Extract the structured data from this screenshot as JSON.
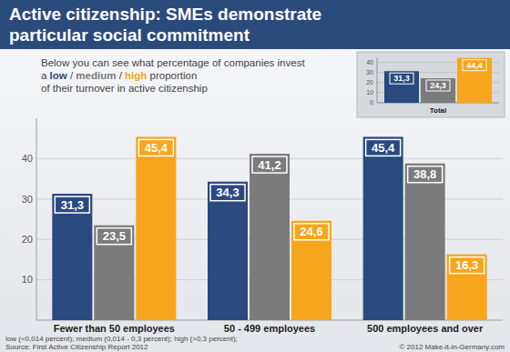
{
  "chart_data": [
    {
      "type": "bar",
      "title": [
        "Active citizenship: SMEs demonstrate",
        "particular social commitment"
      ],
      "subtitle": [
        "Below you can see what percentage of companies invest",
        "a low / medium / high proportion",
        "of their turnover in active citizenship"
      ],
      "categories": [
        "Fewer than 50 employees",
        "50 - 499 employees",
        "500 employees and over"
      ],
      "series": [
        {
          "name": "low",
          "color": "#2a4a7f",
          "values": [
            31.3,
            34.3,
            45.4
          ],
          "value_labels": [
            "31,3",
            "34,3",
            "45,4"
          ]
        },
        {
          "name": "medium",
          "color": "#7b7b7b",
          "values": [
            23.5,
            41.2,
            38.8
          ],
          "value_labels": [
            "23,5",
            "41,2",
            "38,8"
          ]
        },
        {
          "name": "high",
          "color": "#f7a51c",
          "values": [
            45.4,
            24.6,
            16.3
          ],
          "value_labels": [
            "45,4",
            "24,6",
            "16,3"
          ]
        }
      ],
      "ylim": [
        0,
        50
      ],
      "yticks": [
        10,
        20,
        30,
        40
      ],
      "grid": true,
      "data_labels": true,
      "notes": [
        "low (<0,014 percent); medium (0,014 - 0,3 percent); high (>0,3 percent);",
        "Source: First Active Citizenship Report 2012"
      ],
      "credit": "© 2012 Make-it-in-Germany.com"
    },
    {
      "type": "bar",
      "categories": [
        "Total"
      ],
      "series": [
        {
          "color": "#2a4a7f",
          "values": [
            31.3
          ],
          "value_labels": [
            "31,3"
          ]
        },
        {
          "color": "#7b7b7b",
          "values": [
            24.3
          ],
          "value_labels": [
            "24,3"
          ]
        },
        {
          "color": "#f7a51c",
          "values": [
            44.4
          ],
          "value_labels": [
            "44,4"
          ]
        }
      ],
      "ylim": [
        0,
        45
      ],
      "yticks": [
        0,
        10,
        20,
        30,
        40
      ],
      "grid": true,
      "data_labels": true
    }
  ]
}
